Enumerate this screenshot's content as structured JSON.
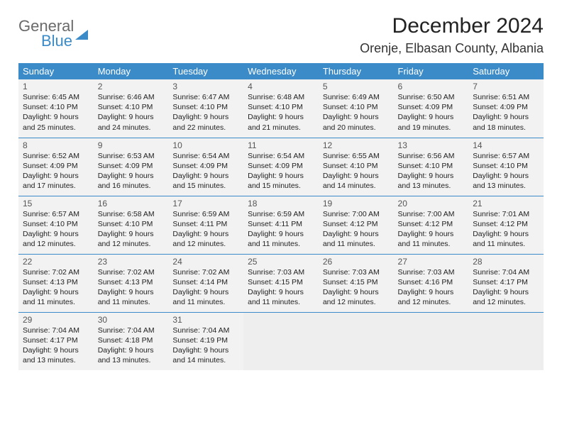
{
  "brand": {
    "line1": "General",
    "line2": "Blue"
  },
  "title": "December 2024",
  "location": "Orenje, Elbasan County, Albania",
  "colors": {
    "header_bg": "#3b8bc8",
    "header_text": "#ffffff",
    "cell_bg": "#f2f2f2",
    "rule": "#3b8bc8",
    "body_text": "#222222",
    "daynum_text": "#555555"
  },
  "columns": [
    "Sunday",
    "Monday",
    "Tuesday",
    "Wednesday",
    "Thursday",
    "Friday",
    "Saturday"
  ],
  "weeks": [
    [
      {
        "n": "1",
        "sr": "6:45 AM",
        "ss": "4:10 PM",
        "dl": "9 hours and 25 minutes."
      },
      {
        "n": "2",
        "sr": "6:46 AM",
        "ss": "4:10 PM",
        "dl": "9 hours and 24 minutes."
      },
      {
        "n": "3",
        "sr": "6:47 AM",
        "ss": "4:10 PM",
        "dl": "9 hours and 22 minutes."
      },
      {
        "n": "4",
        "sr": "6:48 AM",
        "ss": "4:10 PM",
        "dl": "9 hours and 21 minutes."
      },
      {
        "n": "5",
        "sr": "6:49 AM",
        "ss": "4:10 PM",
        "dl": "9 hours and 20 minutes."
      },
      {
        "n": "6",
        "sr": "6:50 AM",
        "ss": "4:09 PM",
        "dl": "9 hours and 19 minutes."
      },
      {
        "n": "7",
        "sr": "6:51 AM",
        "ss": "4:09 PM",
        "dl": "9 hours and 18 minutes."
      }
    ],
    [
      {
        "n": "8",
        "sr": "6:52 AM",
        "ss": "4:09 PM",
        "dl": "9 hours and 17 minutes."
      },
      {
        "n": "9",
        "sr": "6:53 AM",
        "ss": "4:09 PM",
        "dl": "9 hours and 16 minutes."
      },
      {
        "n": "10",
        "sr": "6:54 AM",
        "ss": "4:09 PM",
        "dl": "9 hours and 15 minutes."
      },
      {
        "n": "11",
        "sr": "6:54 AM",
        "ss": "4:09 PM",
        "dl": "9 hours and 15 minutes."
      },
      {
        "n": "12",
        "sr": "6:55 AM",
        "ss": "4:10 PM",
        "dl": "9 hours and 14 minutes."
      },
      {
        "n": "13",
        "sr": "6:56 AM",
        "ss": "4:10 PM",
        "dl": "9 hours and 13 minutes."
      },
      {
        "n": "14",
        "sr": "6:57 AM",
        "ss": "4:10 PM",
        "dl": "9 hours and 13 minutes."
      }
    ],
    [
      {
        "n": "15",
        "sr": "6:57 AM",
        "ss": "4:10 PM",
        "dl": "9 hours and 12 minutes."
      },
      {
        "n": "16",
        "sr": "6:58 AM",
        "ss": "4:10 PM",
        "dl": "9 hours and 12 minutes."
      },
      {
        "n": "17",
        "sr": "6:59 AM",
        "ss": "4:11 PM",
        "dl": "9 hours and 12 minutes."
      },
      {
        "n": "18",
        "sr": "6:59 AM",
        "ss": "4:11 PM",
        "dl": "9 hours and 11 minutes."
      },
      {
        "n": "19",
        "sr": "7:00 AM",
        "ss": "4:12 PM",
        "dl": "9 hours and 11 minutes."
      },
      {
        "n": "20",
        "sr": "7:00 AM",
        "ss": "4:12 PM",
        "dl": "9 hours and 11 minutes."
      },
      {
        "n": "21",
        "sr": "7:01 AM",
        "ss": "4:12 PM",
        "dl": "9 hours and 11 minutes."
      }
    ],
    [
      {
        "n": "22",
        "sr": "7:02 AM",
        "ss": "4:13 PM",
        "dl": "9 hours and 11 minutes."
      },
      {
        "n": "23",
        "sr": "7:02 AM",
        "ss": "4:13 PM",
        "dl": "9 hours and 11 minutes."
      },
      {
        "n": "24",
        "sr": "7:02 AM",
        "ss": "4:14 PM",
        "dl": "9 hours and 11 minutes."
      },
      {
        "n": "25",
        "sr": "7:03 AM",
        "ss": "4:15 PM",
        "dl": "9 hours and 11 minutes."
      },
      {
        "n": "26",
        "sr": "7:03 AM",
        "ss": "4:15 PM",
        "dl": "9 hours and 12 minutes."
      },
      {
        "n": "27",
        "sr": "7:03 AM",
        "ss": "4:16 PM",
        "dl": "9 hours and 12 minutes."
      },
      {
        "n": "28",
        "sr": "7:04 AM",
        "ss": "4:17 PM",
        "dl": "9 hours and 12 minutes."
      }
    ],
    [
      {
        "n": "29",
        "sr": "7:04 AM",
        "ss": "4:17 PM",
        "dl": "9 hours and 13 minutes."
      },
      {
        "n": "30",
        "sr": "7:04 AM",
        "ss": "4:18 PM",
        "dl": "9 hours and 13 minutes."
      },
      {
        "n": "31",
        "sr": "7:04 AM",
        "ss": "4:19 PM",
        "dl": "9 hours and 14 minutes."
      },
      null,
      null,
      null,
      null
    ]
  ],
  "labels": {
    "sunrise": "Sunrise:",
    "sunset": "Sunset:",
    "daylight": "Daylight:"
  }
}
